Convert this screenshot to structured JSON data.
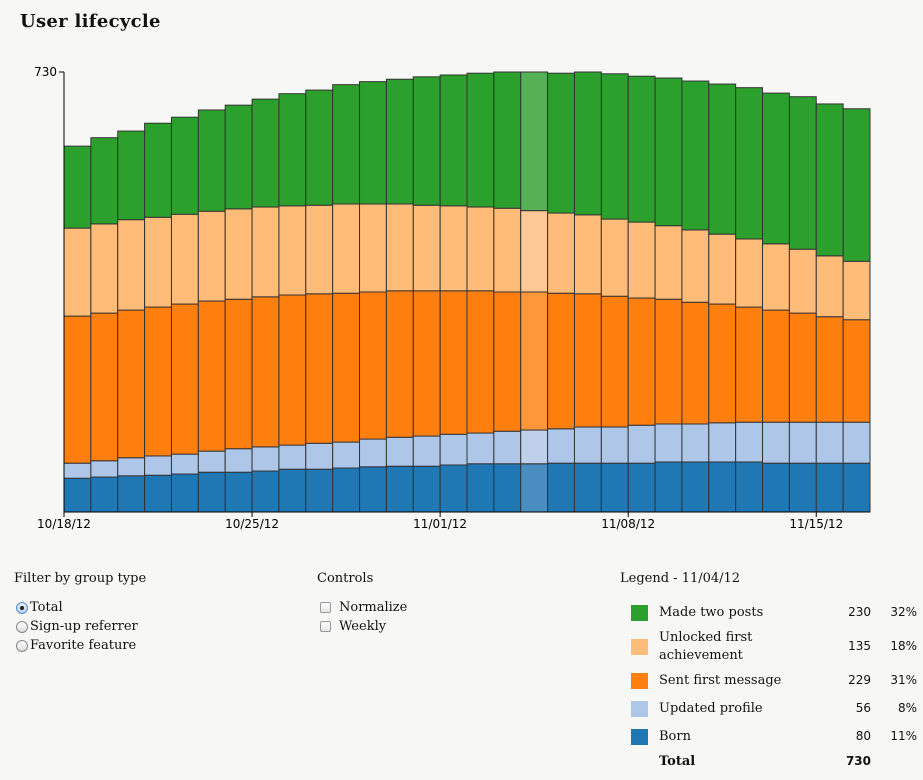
{
  "title": "User lifecycle",
  "chart_data": {
    "type": "bar",
    "stacked": true,
    "categories": [
      "10/18/12",
      "10/19/12",
      "10/20/12",
      "10/21/12",
      "10/22/12",
      "10/23/12",
      "10/24/12",
      "10/25/12",
      "10/26/12",
      "10/27/12",
      "10/28/12",
      "10/29/12",
      "10/30/12",
      "10/31/12",
      "11/01/12",
      "11/02/12",
      "11/03/12",
      "11/04/12",
      "11/05/12",
      "11/06/12",
      "11/07/12",
      "11/08/12",
      "11/09/12",
      "11/10/12",
      "11/11/12",
      "11/12/12",
      "11/13/12",
      "11/14/12",
      "11/15/12",
      "11/16/12"
    ],
    "x_ticks": [
      "10/18/12",
      "10/25/12",
      "11/01/12",
      "11/08/12",
      "11/15/12"
    ],
    "y_ticks": [
      "730"
    ],
    "ylim": [
      0,
      730
    ],
    "highlighted_category": "11/04/12",
    "series": [
      {
        "name": "Born",
        "color": "#1f77b4",
        "highlight_color": "#4a8dc0",
        "values": [
          56,
          58,
          60,
          61,
          63,
          66,
          66,
          68,
          71,
          71,
          73,
          75,
          76,
          76,
          78,
          80,
          80,
          80,
          81,
          81,
          81,
          81,
          83,
          83,
          83,
          83,
          81,
          81,
          81,
          81
        ]
      },
      {
        "name": "Updated profile",
        "color": "#aec7e8",
        "highlight_color": "#bfd0ea",
        "values": [
          25,
          27,
          30,
          32,
          33,
          35,
          39,
          40,
          40,
          43,
          43,
          46,
          48,
          50,
          51,
          51,
          54,
          56,
          57,
          60,
          60,
          63,
          63,
          63,
          65,
          66,
          68,
          68,
          68,
          68
        ]
      },
      {
        "name": "Sent first message",
        "color": "#ff7f0e",
        "highlight_color": "#ff963a",
        "values": [
          244,
          245,
          245,
          247,
          249,
          249,
          248,
          249,
          249,
          248,
          247,
          244,
          243,
          241,
          238,
          236,
          231,
          229,
          225,
          221,
          217,
          211,
          207,
          202,
          197,
          191,
          186,
          181,
          175,
          170
        ]
      },
      {
        "name": "Unlocked first achievement",
        "color": "#ffbb78",
        "highlight_color": "#ffc894",
        "values": [
          146,
          148,
          150,
          149,
          149,
          149,
          150,
          149,
          148,
          147,
          148,
          146,
          144,
          142,
          141,
          139,
          139,
          135,
          133,
          131,
          128,
          126,
          122,
          120,
          116,
          113,
          110,
          106,
          101,
          97
        ]
      },
      {
        "name": "Made two posts",
        "color": "#2ca02c",
        "highlight_color": "#56b156",
        "values": [
          136,
          143,
          147,
          156,
          161,
          168,
          172,
          179,
          186,
          191,
          198,
          203,
          207,
          213,
          217,
          222,
          226,
          230,
          232,
          237,
          241,
          242,
          245,
          247,
          249,
          251,
          250,
          253,
          252,
          253
        ]
      }
    ],
    "grid": false
  },
  "filter": {
    "title": "Filter by group type",
    "options": [
      {
        "label": "Total",
        "selected": true
      },
      {
        "label": "Sign-up referrer",
        "selected": false
      },
      {
        "label": "Favorite feature",
        "selected": false
      }
    ]
  },
  "controls": {
    "title": "Controls",
    "options": [
      {
        "label": "Normalize",
        "checked": false
      },
      {
        "label": "Weekly",
        "checked": false
      }
    ]
  },
  "legend": {
    "title": "Legend - 11/04/12",
    "rows": [
      {
        "label": "Made two posts",
        "value": "230",
        "pct": "32%",
        "color": "#2ca02c"
      },
      {
        "label": "Unlocked first achievement",
        "value": "135",
        "pct": "18%",
        "color": "#ffbb78"
      },
      {
        "label": "Sent first message",
        "value": "229",
        "pct": "31%",
        "color": "#ff7f0e"
      },
      {
        "label": "Updated profile",
        "value": "56",
        "pct": "8%",
        "color": "#aec7e8"
      },
      {
        "label": "Born",
        "value": "80",
        "pct": "11%",
        "color": "#1f77b4"
      }
    ],
    "total_label": "Total",
    "total_value": "730"
  }
}
